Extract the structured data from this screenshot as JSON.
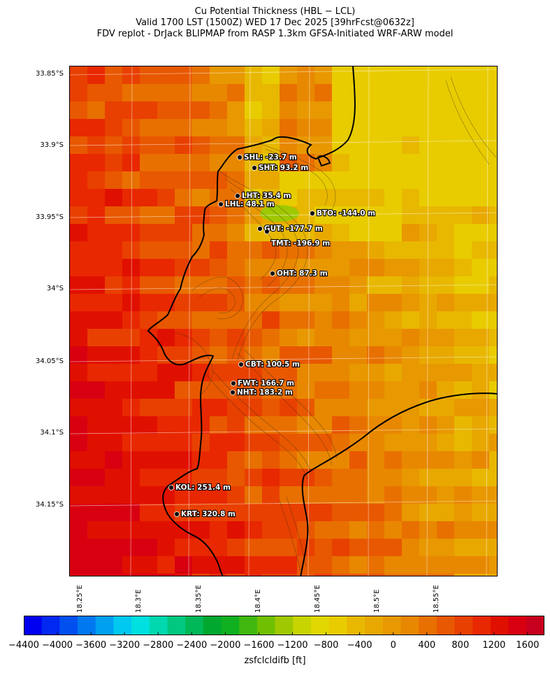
{
  "title": {
    "line1": "Cu Potential Thickness (HBL − LCL)",
    "line2": "Valid 1700 LST (1500Z) WED 17 Dec 2025 [39hrFcst@0632z]",
    "line3": "FDV replot - DrJack BLIPMAP from RASP 1.3km GFSA-Initiated WRF-ARW model"
  },
  "lat_labels": [
    "33.85°S",
    "33.9°S",
    "33.95°S",
    "34°S",
    "34.05°S",
    "34.1°S",
    "34.15°S"
  ],
  "lon_labels": [
    "18.25°E",
    "18.3°E",
    "18.35°E",
    "18.4°E",
    "18.45°E",
    "18.5°E",
    "18.55°E"
  ],
  "stations": [
    {
      "code": "SHL",
      "label": "SHL: -23.7 m",
      "value_m": -23.7
    },
    {
      "code": "SHT",
      "label": "SHT: 93.2 m",
      "value_m": 93.2
    },
    {
      "code": "LHT",
      "label": "LHT: 35.4 m",
      "value_m": 35.4
    },
    {
      "code": "LHL",
      "label": "LHL: 48.1 m",
      "value_m": 48.1
    },
    {
      "code": "BTO",
      "label": "BTO: -144.0 m",
      "value_m": -144.0
    },
    {
      "code": "GUT",
      "label": "GUT: -177.7 m",
      "value_m": -177.7
    },
    {
      "code": "TMT",
      "label": "TMT: -196.9 m",
      "value_m": -196.9
    },
    {
      "code": "OHT",
      "label": "OHT: 87.3 m",
      "value_m": 87.3
    },
    {
      "code": "CBT",
      "label": "CBT: 100.5 m",
      "value_m": 100.5
    },
    {
      "code": "FWT",
      "label": "FWT: 166.7 m",
      "value_m": 166.7
    },
    {
      "code": "NHT",
      "label": "NHT: 183.2 m",
      "value_m": 183.2
    },
    {
      "code": "KOL",
      "label": "KOL: 251.4 m",
      "value_m": 251.4
    },
    {
      "code": "KRT",
      "label": "KRT: 320.8 m",
      "value_m": 320.8
    }
  ],
  "colorbar": {
    "title": "zsfclcldifb [ft]",
    "tick_labels": [
      "−4400",
      "−4000",
      "−3600",
      "−3200",
      "−2800",
      "−2400",
      "−2000",
      "−1600",
      "−1200",
      "−800",
      "−400",
      "0",
      "400",
      "800",
      "1200",
      "1600"
    ],
    "colors": [
      "#0000f0",
      "#0028f0",
      "#0050f0",
      "#0078f0",
      "#00a0f0",
      "#00c8f0",
      "#00e0e0",
      "#00d8b0",
      "#00c880",
      "#00b858",
      "#00a830",
      "#10b020",
      "#40b810",
      "#70c000",
      "#a0c800",
      "#c8d400",
      "#e0d800",
      "#e8cc00",
      "#e8b800",
      "#e8a800",
      "#e89800",
      "#e88800",
      "#e87000",
      "#e85800",
      "#e84000",
      "#e82800",
      "#e01000",
      "#d80010",
      "#c80020"
    ],
    "range_ft": [
      -4400,
      1800
    ]
  },
  "colors": {
    "coastline": "#000000",
    "grid": "#ffffff",
    "contour": "#3a2a10",
    "station_dot": "#000000",
    "station_text": "#ffffff"
  }
}
